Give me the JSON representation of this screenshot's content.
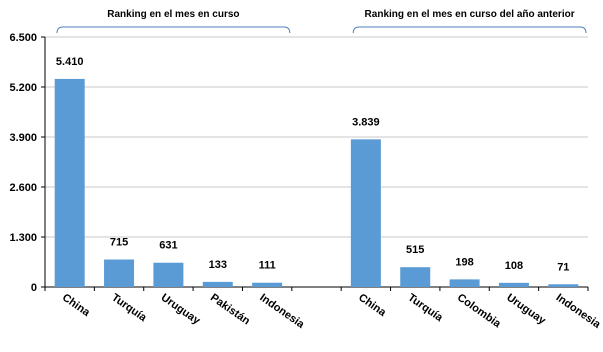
{
  "chart_data": {
    "type": "bar",
    "ylim": [
      0,
      6500
    ],
    "yticks": [
      "0",
      "1.300",
      "2.600",
      "3.900",
      "5.200",
      "6.500"
    ],
    "ytick_values": [
      0,
      1300,
      2600,
      3900,
      5200,
      6500
    ],
    "grid": true,
    "bar_color": "#5b9bd5",
    "grid_color": "#c8c8c8",
    "bracket_color": "#4f81bd",
    "groups": [
      {
        "title": "Ranking en el mes en curso",
        "categories": [
          "China",
          "Turquía",
          "Uruguay",
          "Pakistán",
          "Indonesia"
        ],
        "values": [
          5410,
          715,
          631,
          133,
          111
        ],
        "labels": [
          "5.410",
          "715",
          "631",
          "133",
          "111"
        ]
      },
      {
        "title": "Ranking en el mes en curso del año anterior",
        "categories": [
          "China",
          "Turquía",
          "Colombia",
          "Uruguay",
          "Indonesia"
        ],
        "values": [
          3839,
          515,
          198,
          108,
          71
        ],
        "labels": [
          "3.839",
          "515",
          "198",
          "108",
          "71"
        ]
      }
    ]
  }
}
